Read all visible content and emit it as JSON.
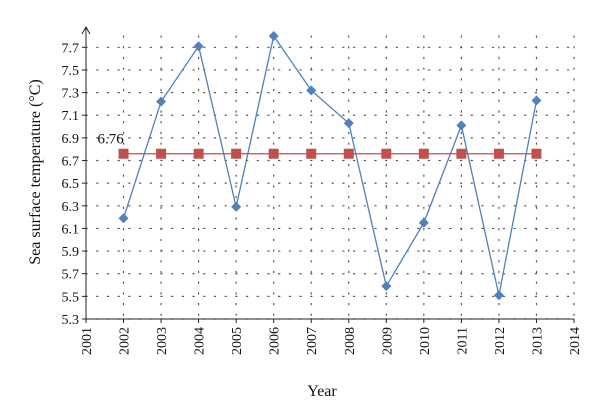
{
  "chart_data": {
    "type": "line",
    "xlabel": "Year",
    "ylabel": "Sea surface temperature (°C)",
    "xlim": [
      2001,
      2014
    ],
    "ylim": [
      5.3,
      7.8
    ],
    "x_ticks": [
      2001,
      2002,
      2003,
      2004,
      2005,
      2006,
      2007,
      2008,
      2009,
      2010,
      2011,
      2012,
      2013,
      2014
    ],
    "y_ticks": [
      5.3,
      5.5,
      5.7,
      5.9,
      6.1,
      6.3,
      6.5,
      6.7,
      6.9,
      7.1,
      7.3,
      7.5,
      7.7
    ],
    "grid": "dotted",
    "legend": "none",
    "series": [
      {
        "marker": "diamond",
        "color": "#4f81bd",
        "x": [
          2002,
          2003,
          2004,
          2005,
          2006,
          2007,
          2008,
          2009,
          2010,
          2011,
          2012,
          2013
        ],
        "values": [
          6.19,
          7.22,
          7.71,
          6.29,
          7.8,
          7.32,
          7.03,
          5.59,
          6.15,
          7.01,
          5.51,
          7.23
        ]
      },
      {
        "marker": "square",
        "color": "#c0504d",
        "x": [
          2002,
          2003,
          2004,
          2005,
          2006,
          2007,
          2008,
          2009,
          2010,
          2011,
          2012,
          2013
        ],
        "values": [
          6.76,
          6.76,
          6.76,
          6.76,
          6.76,
          6.76,
          6.76,
          6.76,
          6.76,
          6.76,
          6.76,
          6.76
        ]
      }
    ],
    "annotation": {
      "text": "6.76",
      "x": 2002,
      "y": 6.76
    }
  }
}
